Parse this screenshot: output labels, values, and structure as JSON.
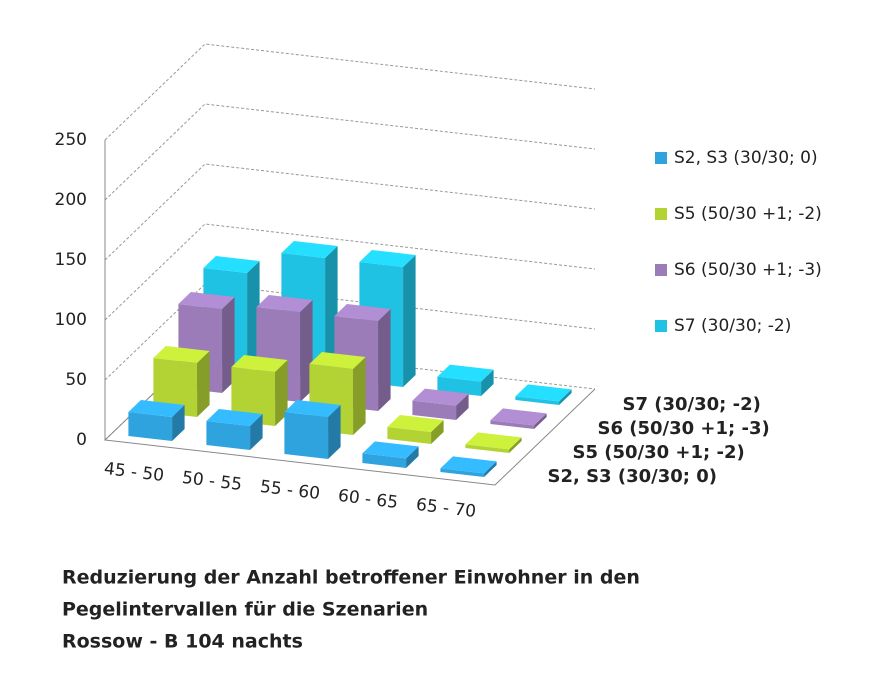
{
  "chart_data": {
    "type": "bar3d",
    "title": [
      "Reduzierung der Anzahl betroffener  Einwohner in den",
      "Pegelintervallen für die Szenarien",
      "Rossow - B 104 nachts"
    ],
    "categories": [
      "45 - 50",
      "50 - 55",
      "55 - 60",
      "60 - 65",
      "65 - 70"
    ],
    "series": [
      {
        "name": "S2, S3 (30/30; 0)",
        "color": "#2ea3de",
        "values": [
          20,
          20,
          35,
          8,
          3
        ]
      },
      {
        "name": "S5 (50/30 +1; -2)",
        "color": "#b3d234",
        "values": [
          45,
          45,
          55,
          10,
          3
        ]
      },
      {
        "name": "S6 (50/30 +1; -3)",
        "color": "#9b7cb8",
        "values": [
          70,
          75,
          75,
          12,
          3
        ]
      },
      {
        "name": "S7 (30/30; -2)",
        "color": "#1fc2e2",
        "values": [
          80,
          100,
          100,
          12,
          3
        ]
      }
    ],
    "ylim": [
      0,
      250
    ],
    "yticks": [
      0,
      50,
      100,
      150,
      200,
      250
    ],
    "grid": true,
    "legend": "right"
  }
}
